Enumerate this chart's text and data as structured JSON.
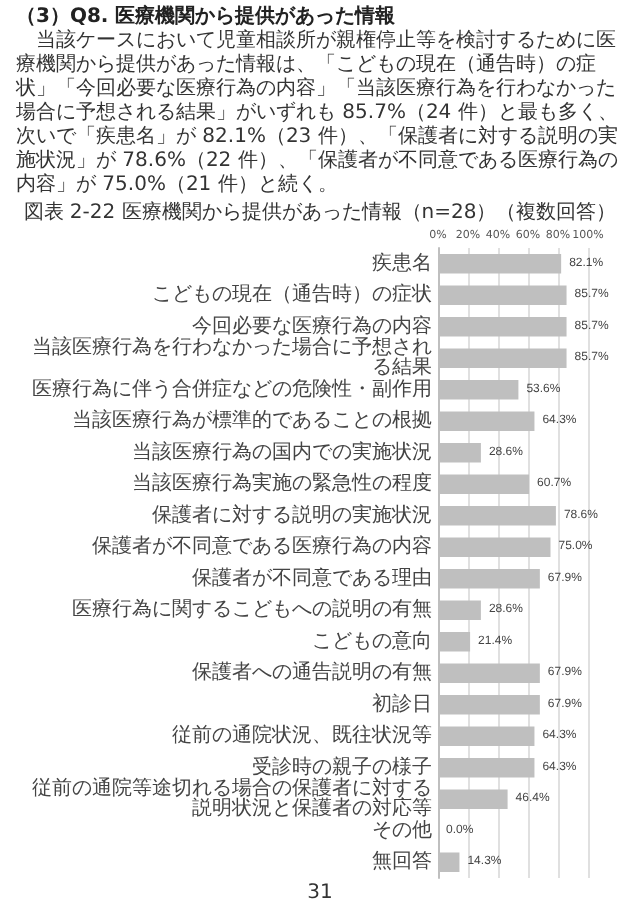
{
  "chart_data": {
    "type": "bar",
    "orientation": "horizontal",
    "title": "図表 2-22 医療機関から提供があった情報（n=28）（複数回答）",
    "annotations": [
      "（3）Q8. 医療機関から提供があった情報",
      "当該ケースにおいて児童相談所が親権停止等を検討するために医療機関から提供があった情報は、「こどもの現在（通告時）の症状」「今回必要な医療行為の内容」「当該医療行為を行わなかった場合に予想される結果」がいずれも 85.7%（24 件）と最も多く、次いで「疾患名」が 82.1%（23 件）、「保護者に対する説明の実施状況」が 78.6%（22 件）、「保護者が不同意である医療行為の内容」が 75.0%（21 件）と続く。",
      "31"
    ],
    "categories": [
      "疾患名",
      "こどもの現在（通告時）の症状",
      "今回必要な医療行為の内容",
      "当該医療行為を行わなかった場合に予想される結果",
      "医療行為に伴う合併症などの危険性・副作用",
      "当該医療行為が標準的であることの根拠",
      "当該医療行為の国内での実施状況",
      "当該医療行為実施の緊急性の程度",
      "保護者に対する説明の実施状況",
      "保護者が不同意である医療行為の内容",
      "保護者が不同意である理由",
      "医療行為に関するこどもへの説明の有無",
      "こどもの意向",
      "保護者への通告説明の有無",
      "初診日",
      "従前の通院状況、既往状況等",
      "受診時の親子の様子",
      "従前の通院等途切れる場合の保護者に対する説明状況と保護者の対応等",
      "その他",
      "無回答"
    ],
    "values": [
      82.1,
      85.7,
      85.7,
      85.7,
      53.6,
      64.3,
      28.6,
      60.7,
      78.6,
      75.0,
      67.9,
      28.6,
      21.4,
      67.9,
      67.9,
      64.3,
      64.3,
      46.4,
      0.0,
      14.3
    ],
    "value_labels": [
      "82.1%",
      "85.7%",
      "85.7%",
      "85.7%",
      "53.6%",
      "64.3%",
      "28.6%",
      "60.7%",
      "78.6%",
      "75.0%",
      "67.9%",
      "28.6%",
      "21.4%",
      "67.9%",
      "67.9%",
      "64.3%",
      "64.3%",
      "46.4%",
      "0.0%",
      "14.3%"
    ],
    "color": "#bfbfbf",
    "xlim": [
      0,
      100
    ],
    "xticks": [
      {
        "value": 0,
        "label": "0%"
      },
      {
        "value": 20,
        "label": "20%"
      },
      {
        "value": 40,
        "label": "40%"
      },
      {
        "value": 60,
        "label": "60%"
      },
      {
        "value": 80,
        "label": "80%"
      },
      {
        "value": 100,
        "label": "100%"
      }
    ],
    "grid": "x"
  }
}
